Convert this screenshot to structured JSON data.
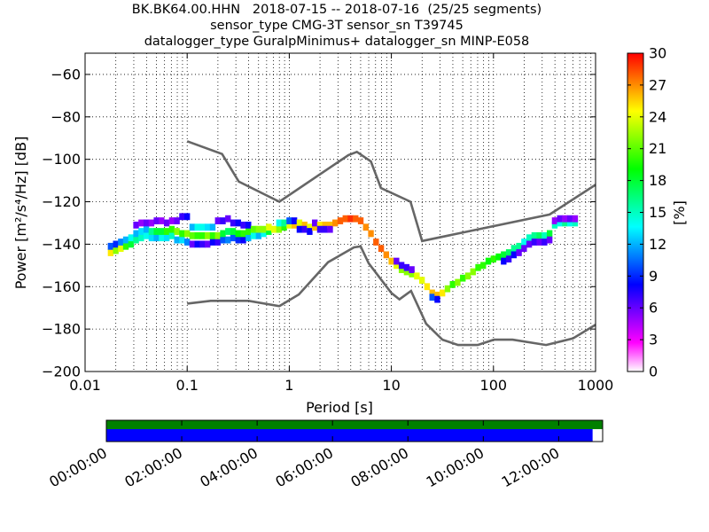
{
  "title_lines": [
    "BK.BK64.00.HHN   2018-07-15 -- 2018-07-16  (25/25 segments)",
    "sensor_type CMG-3T sensor_sn T39745",
    "datalogger_type GuralpMinimus+ datalogger_sn MINP-E058"
  ],
  "chart_data": {
    "type": "heatmap",
    "xlabel": "Period [s]",
    "ylabel": "Power [m²/s⁴/Hz] [dB]",
    "x_scale": "log",
    "xlim": [
      0.01,
      1000
    ],
    "ylim": [
      -200,
      -50
    ],
    "x_ticks": [
      0.01,
      0.1,
      1,
      10,
      100,
      1000
    ],
    "x_tick_labels": [
      "0.01",
      "0.1",
      "1",
      "10",
      "100",
      "1000"
    ],
    "y_ticks": [
      -200,
      -180,
      -160,
      -140,
      -120,
      -100,
      -80,
      -60
    ],
    "y_tick_labels": [
      "−200",
      "−180",
      "−160",
      "−140",
      "−120",
      "−100",
      "−80",
      "−60"
    ],
    "grid": "dotted, major and minor",
    "colorbar": {
      "label": "[%]",
      "range": [
        0,
        30
      ],
      "ticks": [
        0,
        3,
        6,
        9,
        12,
        15,
        18,
        21,
        24,
        27,
        30
      ],
      "colormap": [
        "#ffffff",
        "#ff00ff",
        "#7f00ff",
        "#0000ff",
        "#0080ff",
        "#00ffff",
        "#00ff80",
        "#00ff00",
        "#80ff00",
        "#ffff00",
        "#ff8000",
        "#ff0000"
      ]
    },
    "series": [
      {
        "role": "high-noise-model",
        "color": "#666666",
        "points": [
          [
            0.1,
            -91.5
          ],
          [
            0.22,
            -97.5
          ],
          [
            0.32,
            -110.5
          ],
          [
            0.8,
            -120
          ],
          [
            3.8,
            -98
          ],
          [
            4.6,
            -96.5
          ],
          [
            6.3,
            -101
          ],
          [
            7.9,
            -113.5
          ],
          [
            15.4,
            -120
          ],
          [
            20,
            -138.5
          ],
          [
            354.8,
            -126
          ],
          [
            1000,
            -112
          ]
        ]
      },
      {
        "role": "low-noise-model",
        "color": "#666666",
        "points": [
          [
            0.1,
            -168
          ],
          [
            0.17,
            -166.7
          ],
          [
            0.4,
            -166.7
          ],
          [
            0.8,
            -169.2
          ],
          [
            1.24,
            -163.7
          ],
          [
            2.4,
            -148.5
          ],
          [
            4.3,
            -141.5
          ],
          [
            5,
            -141
          ],
          [
            6,
            -149
          ],
          [
            10,
            -163
          ],
          [
            12,
            -166
          ],
          [
            15.6,
            -162
          ],
          [
            21.9,
            -177.5
          ],
          [
            31.6,
            -185
          ],
          [
            45,
            -187.5
          ],
          [
            70,
            -187.5
          ],
          [
            101,
            -185
          ],
          [
            154,
            -185
          ],
          [
            328,
            -187.5
          ],
          [
            600,
            -184.4
          ],
          [
            1000,
            -178
          ]
        ]
      }
    ],
    "psd_distribution": [
      {
        "x": 0.0178,
        "y": -144,
        "pct": 25
      },
      {
        "x": 0.0178,
        "y": -141,
        "pct": 10
      },
      {
        "x": 0.02,
        "y": -143,
        "pct": 22
      },
      {
        "x": 0.02,
        "y": -140,
        "pct": 9
      },
      {
        "x": 0.0224,
        "y": -142,
        "pct": 24
      },
      {
        "x": 0.0224,
        "y": -139,
        "pct": 11
      },
      {
        "x": 0.0251,
        "y": -141,
        "pct": 20
      },
      {
        "x": 0.0251,
        "y": -138,
        "pct": 12
      },
      {
        "x": 0.0282,
        "y": -140,
        "pct": 18
      },
      {
        "x": 0.0282,
        "y": -137,
        "pct": 14
      },
      {
        "x": 0.0316,
        "y": -138,
        "pct": 16
      },
      {
        "x": 0.0316,
        "y": -135,
        "pct": 12
      },
      {
        "x": 0.0316,
        "y": -131,
        "pct": 6
      },
      {
        "x": 0.0355,
        "y": -137,
        "pct": 15
      },
      {
        "x": 0.0355,
        "y": -134,
        "pct": 13
      },
      {
        "x": 0.0355,
        "y": -130,
        "pct": 5
      },
      {
        "x": 0.0398,
        "y": -136,
        "pct": 14
      },
      {
        "x": 0.0398,
        "y": -133,
        "pct": 12
      },
      {
        "x": 0.0398,
        "y": -130,
        "pct": 6
      },
      {
        "x": 0.0447,
        "y": -137,
        "pct": 13
      },
      {
        "x": 0.0447,
        "y": -134,
        "pct": 16
      },
      {
        "x": 0.0447,
        "y": -130,
        "pct": 5
      },
      {
        "x": 0.0501,
        "y": -137,
        "pct": 12
      },
      {
        "x": 0.0501,
        "y": -134,
        "pct": 18
      },
      {
        "x": 0.0501,
        "y": -129,
        "pct": 6
      },
      {
        "x": 0.0562,
        "y": -137,
        "pct": 14
      },
      {
        "x": 0.0562,
        "y": -134,
        "pct": 18
      },
      {
        "x": 0.0562,
        "y": -129,
        "pct": 5
      },
      {
        "x": 0.0631,
        "y": -137,
        "pct": 13
      },
      {
        "x": 0.0631,
        "y": -134,
        "pct": 20
      },
      {
        "x": 0.0631,
        "y": -130,
        "pct": 6
      },
      {
        "x": 0.0708,
        "y": -136,
        "pct": 15
      },
      {
        "x": 0.0708,
        "y": -133,
        "pct": 20
      },
      {
        "x": 0.0708,
        "y": -129,
        "pct": 5
      },
      {
        "x": 0.0794,
        "y": -138,
        "pct": 12
      },
      {
        "x": 0.0794,
        "y": -134,
        "pct": 22
      },
      {
        "x": 0.0794,
        "y": -129,
        "pct": 6
      },
      {
        "x": 0.0891,
        "y": -138,
        "pct": 13
      },
      {
        "x": 0.0891,
        "y": -135,
        "pct": 20
      },
      {
        "x": 0.0891,
        "y": -127,
        "pct": 7
      },
      {
        "x": 0.1,
        "y": -139,
        "pct": 11
      },
      {
        "x": 0.1,
        "y": -135,
        "pct": 22
      },
      {
        "x": 0.1,
        "y": -127,
        "pct": 8
      },
      {
        "x": 0.1122,
        "y": -140,
        "pct": 6
      },
      {
        "x": 0.1122,
        "y": -136,
        "pct": 21
      },
      {
        "x": 0.1122,
        "y": -132,
        "pct": 12
      },
      {
        "x": 0.1259,
        "y": -140,
        "pct": 8
      },
      {
        "x": 0.1259,
        "y": -136,
        "pct": 20
      },
      {
        "x": 0.1259,
        "y": -132,
        "pct": 14
      },
      {
        "x": 0.1413,
        "y": -140,
        "pct": 7
      },
      {
        "x": 0.1413,
        "y": -136,
        "pct": 20
      },
      {
        "x": 0.1413,
        "y": -132,
        "pct": 14
      },
      {
        "x": 0.1585,
        "y": -140,
        "pct": 6
      },
      {
        "x": 0.1585,
        "y": -136,
        "pct": 22
      },
      {
        "x": 0.1585,
        "y": -132,
        "pct": 13
      },
      {
        "x": 0.1778,
        "y": -139,
        "pct": 8
      },
      {
        "x": 0.1778,
        "y": -136,
        "pct": 20
      },
      {
        "x": 0.1778,
        "y": -132,
        "pct": 12
      },
      {
        "x": 0.1995,
        "y": -139,
        "pct": 7
      },
      {
        "x": 0.1995,
        "y": -136,
        "pct": 22
      },
      {
        "x": 0.1995,
        "y": -129,
        "pct": 6
      },
      {
        "x": 0.2239,
        "y": -138,
        "pct": 10
      },
      {
        "x": 0.2239,
        "y": -135,
        "pct": 18
      },
      {
        "x": 0.2239,
        "y": -129,
        "pct": 7
      },
      {
        "x": 0.2512,
        "y": -138,
        "pct": 11
      },
      {
        "x": 0.2512,
        "y": -134,
        "pct": 17
      },
      {
        "x": 0.2512,
        "y": -128,
        "pct": 6
      },
      {
        "x": 0.2818,
        "y": -137,
        "pct": 10
      },
      {
        "x": 0.2818,
        "y": -134,
        "pct": 18
      },
      {
        "x": 0.2818,
        "y": -130,
        "pct": 7
      },
      {
        "x": 0.3162,
        "y": -138,
        "pct": 9
      },
      {
        "x": 0.3162,
        "y": -135,
        "pct": 19
      },
      {
        "x": 0.3162,
        "y": -130,
        "pct": 8
      },
      {
        "x": 0.3548,
        "y": -138,
        "pct": 8
      },
      {
        "x": 0.3548,
        "y": -135,
        "pct": 20
      },
      {
        "x": 0.3548,
        "y": -131,
        "pct": 7
      },
      {
        "x": 0.3981,
        "y": -137,
        "pct": 12
      },
      {
        "x": 0.3981,
        "y": -134,
        "pct": 20
      },
      {
        "x": 0.3981,
        "y": -131,
        "pct": 8
      },
      {
        "x": 0.4467,
        "y": -136,
        "pct": 14
      },
      {
        "x": 0.4467,
        "y": -133,
        "pct": 21
      },
      {
        "x": 0.5012,
        "y": -136,
        "pct": 12
      },
      {
        "x": 0.5012,
        "y": -133,
        "pct": 22
      },
      {
        "x": 0.5623,
        "y": -135,
        "pct": 14
      },
      {
        "x": 0.5623,
        "y": -133,
        "pct": 22
      },
      {
        "x": 0.631,
        "y": -134,
        "pct": 18
      },
      {
        "x": 0.631,
        "y": -132,
        "pct": 24
      },
      {
        "x": 0.7079,
        "y": -133,
        "pct": 24
      },
      {
        "x": 0.7943,
        "y": -133,
        "pct": 22
      },
      {
        "x": 0.7943,
        "y": -130,
        "pct": 14
      },
      {
        "x": 0.8913,
        "y": -132,
        "pct": 20
      },
      {
        "x": 0.8913,
        "y": -130,
        "pct": 16
      },
      {
        "x": 1.0,
        "y": -131,
        "pct": 24
      },
      {
        "x": 1.0,
        "y": -129,
        "pct": 10
      },
      {
        "x": 1.122,
        "y": -131,
        "pct": 26
      },
      {
        "x": 1.122,
        "y": -129,
        "pct": 8
      },
      {
        "x": 1.259,
        "y": -130,
        "pct": 24
      },
      {
        "x": 1.259,
        "y": -133,
        "pct": 8
      },
      {
        "x": 1.413,
        "y": -131,
        "pct": 26
      },
      {
        "x": 1.413,
        "y": -133,
        "pct": 7
      },
      {
        "x": 1.585,
        "y": -132,
        "pct": 24
      },
      {
        "x": 1.585,
        "y": -134,
        "pct": 8
      },
      {
        "x": 1.778,
        "y": -132,
        "pct": 26
      },
      {
        "x": 1.778,
        "y": -130,
        "pct": 6
      },
      {
        "x": 1.995,
        "y": -131,
        "pct": 25
      },
      {
        "x": 1.995,
        "y": -133,
        "pct": 7
      },
      {
        "x": 2.239,
        "y": -131,
        "pct": 26
      },
      {
        "x": 2.239,
        "y": -133,
        "pct": 7
      },
      {
        "x": 2.512,
        "y": -131,
        "pct": 26
      },
      {
        "x": 2.512,
        "y": -133,
        "pct": 6
      },
      {
        "x": 2.818,
        "y": -130,
        "pct": 27
      },
      {
        "x": 3.162,
        "y": -129,
        "pct": 28
      },
      {
        "x": 3.548,
        "y": -128,
        "pct": 28
      },
      {
        "x": 3.981,
        "y": -128,
        "pct": 29
      },
      {
        "x": 4.467,
        "y": -128,
        "pct": 28
      },
      {
        "x": 5.012,
        "y": -129,
        "pct": 28
      },
      {
        "x": 5.623,
        "y": -132,
        "pct": 27
      },
      {
        "x": 6.31,
        "y": -135,
        "pct": 27
      },
      {
        "x": 7.079,
        "y": -139,
        "pct": 28
      },
      {
        "x": 7.943,
        "y": -142,
        "pct": 28
      },
      {
        "x": 8.913,
        "y": -145,
        "pct": 27
      },
      {
        "x": 10.0,
        "y": -148,
        "pct": 26
      },
      {
        "x": 11.22,
        "y": -150,
        "pct": 24
      },
      {
        "x": 11.22,
        "y": -148,
        "pct": 6
      },
      {
        "x": 12.59,
        "y": -152,
        "pct": 22
      },
      {
        "x": 12.59,
        "y": -150,
        "pct": 7
      },
      {
        "x": 14.13,
        "y": -153,
        "pct": 22
      },
      {
        "x": 14.13,
        "y": -151,
        "pct": 7
      },
      {
        "x": 15.85,
        "y": -154,
        "pct": 22
      },
      {
        "x": 15.85,
        "y": -152,
        "pct": 6
      },
      {
        "x": 17.78,
        "y": -155,
        "pct": 24
      },
      {
        "x": 19.95,
        "y": -157,
        "pct": 24
      },
      {
        "x": 22.39,
        "y": -160,
        "pct": 25
      },
      {
        "x": 25.12,
        "y": -163,
        "pct": 26
      },
      {
        "x": 25.12,
        "y": -165,
        "pct": 10
      },
      {
        "x": 28.18,
        "y": -164,
        "pct": 26
      },
      {
        "x": 28.18,
        "y": -166,
        "pct": 8
      },
      {
        "x": 31.62,
        "y": -163,
        "pct": 25
      },
      {
        "x": 35.48,
        "y": -161,
        "pct": 22
      },
      {
        "x": 39.81,
        "y": -159,
        "pct": 20
      },
      {
        "x": 44.67,
        "y": -158,
        "pct": 22
      },
      {
        "x": 50.12,
        "y": -156,
        "pct": 20
      },
      {
        "x": 56.23,
        "y": -155,
        "pct": 22
      },
      {
        "x": 63.1,
        "y": -153,
        "pct": 22
      },
      {
        "x": 70.79,
        "y": -151,
        "pct": 20
      },
      {
        "x": 79.43,
        "y": -150,
        "pct": 20
      },
      {
        "x": 89.13,
        "y": -148,
        "pct": 19
      },
      {
        "x": 100.0,
        "y": -147,
        "pct": 20
      },
      {
        "x": 112.2,
        "y": -146,
        "pct": 19
      },
      {
        "x": 125.9,
        "y": -145,
        "pct": 18
      },
      {
        "x": 125.9,
        "y": -148,
        "pct": 8
      },
      {
        "x": 141.3,
        "y": -144,
        "pct": 17
      },
      {
        "x": 141.3,
        "y": -147,
        "pct": 7
      },
      {
        "x": 158.5,
        "y": -142,
        "pct": 16
      },
      {
        "x": 158.5,
        "y": -145,
        "pct": 8
      },
      {
        "x": 177.8,
        "y": -141,
        "pct": 16
      },
      {
        "x": 177.8,
        "y": -144,
        "pct": 6
      },
      {
        "x": 199.5,
        "y": -139,
        "pct": 14
      },
      {
        "x": 199.5,
        "y": -142,
        "pct": 6
      },
      {
        "x": 223.9,
        "y": -137,
        "pct": 15
      },
      {
        "x": 223.9,
        "y": -140,
        "pct": 6
      },
      {
        "x": 251.2,
        "y": -136,
        "pct": 16
      },
      {
        "x": 251.2,
        "y": -139,
        "pct": 7
      },
      {
        "x": 281.8,
        "y": -136,
        "pct": 17
      },
      {
        "x": 281.8,
        "y": -139,
        "pct": 6
      },
      {
        "x": 316.2,
        "y": -136,
        "pct": 15
      },
      {
        "x": 316.2,
        "y": -139,
        "pct": 7
      },
      {
        "x": 354.8,
        "y": -135,
        "pct": 18
      },
      {
        "x": 354.8,
        "y": -138,
        "pct": 6
      },
      {
        "x": 398.1,
        "y": -131,
        "pct": 15
      },
      {
        "x": 398.1,
        "y": -129,
        "pct": 5
      },
      {
        "x": 446.7,
        "y": -130,
        "pct": 14
      },
      {
        "x": 446.7,
        "y": -128,
        "pct": 6
      },
      {
        "x": 501.2,
        "y": -130,
        "pct": 16
      },
      {
        "x": 501.2,
        "y": -128,
        "pct": 5
      },
      {
        "x": 562.3,
        "y": -130,
        "pct": 14
      },
      {
        "x": 562.3,
        "y": -128,
        "pct": 6
      },
      {
        "x": 631.0,
        "y": -130,
        "pct": 15
      },
      {
        "x": 631.0,
        "y": -128,
        "pct": 5
      }
    ]
  },
  "timeline": {
    "tick_labels": [
      "00:00:00",
      "02:00:00",
      "04:00:00",
      "06:00:00",
      "08:00:00",
      "10:00:00",
      "12:00:00"
    ],
    "tick_hours": [
      0,
      2,
      4,
      6,
      8,
      10,
      12
    ],
    "span_hours": 13.1667,
    "data_coverage_hours": [
      0,
      13.1667
    ],
    "psd_coverage_hours": [
      0,
      12.9
    ],
    "colors": {
      "data": "#008000",
      "psd": "#0000ff"
    }
  }
}
